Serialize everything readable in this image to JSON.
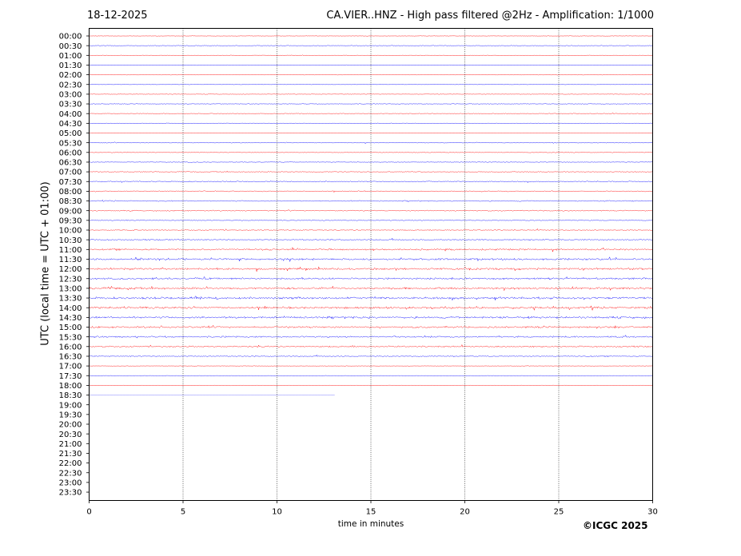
{
  "header": {
    "date": "18-12-2025",
    "title": "CA.VIER..HNZ - High pass filtered @2Hz - Amplification: 1/1000"
  },
  "footer": {
    "copyright": "©ICGC 2025"
  },
  "chart_data": {
    "type": "line",
    "title": "CA.VIER..HNZ - High pass filtered @2Hz - Amplification: 1/1000",
    "xlabel": "time in minutes",
    "ylabel": "UTC (local time = UTC + 01:00)",
    "xlim": [
      0,
      30
    ],
    "xticks": [
      0,
      5,
      10,
      15,
      20,
      25,
      30
    ],
    "x_gridlines": [
      5,
      10,
      15,
      20,
      25
    ],
    "grid_style": "dotted vertical",
    "row_labels": [
      "00:00",
      "00:30",
      "01:00",
      "01:30",
      "02:00",
      "02:30",
      "03:00",
      "03:30",
      "04:00",
      "04:30",
      "05:00",
      "05:30",
      "06:00",
      "06:30",
      "07:00",
      "07:30",
      "08:00",
      "08:30",
      "09:00",
      "09:30",
      "10:00",
      "10:30",
      "11:00",
      "11:30",
      "12:00",
      "12:30",
      "13:00",
      "13:30",
      "14:00",
      "14:30",
      "15:00",
      "15:30",
      "16:00",
      "16:30",
      "17:00",
      "17:30",
      "18:00",
      "18:30",
      "19:00",
      "19:30",
      "20:00",
      "20:30",
      "21:00",
      "21:30",
      "22:00",
      "22:30",
      "23:00",
      "23:30"
    ],
    "row_colors": [
      "#ff0000",
      "#0000ff"
    ],
    "trace_rows": 38,
    "last_row_end_minute": 13.1,
    "amplitude": [
      0.3,
      0.45,
      0.35,
      0.3,
      0.4,
      0.3,
      0.35,
      0.45,
      0.5,
      0.4,
      0.3,
      0.55,
      0.45,
      0.45,
      0.65,
      0.8,
      0.7,
      0.8,
      0.8,
      0.6,
      0.75,
      0.95,
      1.2,
      1.35,
      1.4,
      1.3,
      1.45,
      1.55,
      1.45,
      1.45,
      1.3,
      1.15,
      1.05,
      0.8,
      0.3,
      0.2,
      0.3,
      0.1
    ],
    "colors": {
      "red_trace": "#ff0000",
      "blue_trace": "#0000ff"
    }
  }
}
